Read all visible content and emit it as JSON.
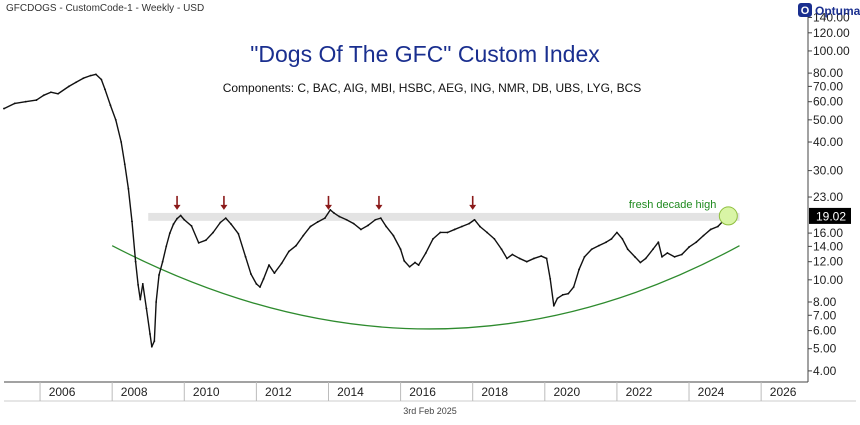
{
  "header": {
    "ticker_text": "GFCDOGS - CustomCode-1 - Weekly - USD"
  },
  "brand": {
    "name": "Optuma",
    "logo_letter": "O"
  },
  "footer": {
    "date_text": "3rd Feb 2025"
  },
  "colors": {
    "price_line": "#111111",
    "resistance_band": "#e3e3e3",
    "arrow": "#8b1a1a",
    "arc": "#2e8b2e",
    "highlight_fill": "#d9f5a6",
    "title": "#1a2f8f",
    "last_value_bg": "#000000"
  },
  "chart_data": {
    "type": "line",
    "title": "\"Dogs Of The GFC\" Custom Index",
    "subtitle": "Components: C, BAC, AIG, MBI, HSBC, AEG, ING, NMR, DB, UBS, LYG, BCS",
    "scale": "log",
    "grid": false,
    "xlabel": "",
    "ylabel": "",
    "xlim": [
      2005.0,
      2027.3
    ],
    "ylim": [
      3.8,
      145
    ],
    "x_ticks": [
      "2006",
      "2008",
      "2010",
      "2012",
      "2014",
      "2016",
      "2018",
      "2020",
      "2022",
      "2024",
      "2026"
    ],
    "y_ticks": [
      "4.00",
      "5.00",
      "6.00",
      "7.00",
      "8.00",
      "10.00",
      "12.00",
      "14.00",
      "16.00",
      "19.02",
      "23.00",
      "30.00",
      "40.00",
      "50.00",
      "60.00",
      "70.00",
      "80.00",
      "100.00",
      "120.00",
      "140.00"
    ],
    "last_value": "19.02",
    "series": [
      {
        "points": [
          [
            2005.0,
            56
          ],
          [
            2005.3,
            59
          ],
          [
            2005.6,
            60
          ],
          [
            2005.9,
            61
          ],
          [
            2006.1,
            64
          ],
          [
            2006.3,
            66
          ],
          [
            2006.5,
            65
          ],
          [
            2006.8,
            70
          ],
          [
            2007.0,
            73
          ],
          [
            2007.2,
            76
          ],
          [
            2007.4,
            78
          ],
          [
            2007.55,
            79
          ],
          [
            2007.7,
            75
          ],
          [
            2007.8,
            68
          ],
          [
            2007.95,
            58
          ],
          [
            2008.1,
            50
          ],
          [
            2008.25,
            40
          ],
          [
            2008.35,
            32
          ],
          [
            2008.45,
            25
          ],
          [
            2008.55,
            18
          ],
          [
            2008.65,
            12
          ],
          [
            2008.72,
            9.5
          ],
          [
            2008.78,
            8.2
          ],
          [
            2008.85,
            9.6
          ],
          [
            2008.95,
            7.5
          ],
          [
            2009.05,
            5.8
          ],
          [
            2009.1,
            5.1
          ],
          [
            2009.17,
            5.4
          ],
          [
            2009.22,
            8
          ],
          [
            2009.3,
            10.5
          ],
          [
            2009.4,
            12
          ],
          [
            2009.5,
            14
          ],
          [
            2009.6,
            16
          ],
          [
            2009.7,
            17.5
          ],
          [
            2009.8,
            18.5
          ],
          [
            2009.9,
            19.1
          ],
          [
            2010.0,
            18.3
          ],
          [
            2010.2,
            17.2
          ],
          [
            2010.4,
            14.5
          ],
          [
            2010.6,
            14.9
          ],
          [
            2010.8,
            16.1
          ],
          [
            2011.0,
            17.8
          ],
          [
            2011.15,
            18.6
          ],
          [
            2011.3,
            17.5
          ],
          [
            2011.5,
            15.9
          ],
          [
            2011.7,
            12.6
          ],
          [
            2011.85,
            10.6
          ],
          [
            2012.0,
            9.6
          ],
          [
            2012.1,
            9.3
          ],
          [
            2012.2,
            10.1
          ],
          [
            2012.35,
            11.6
          ],
          [
            2012.5,
            10.7
          ],
          [
            2012.7,
            11.8
          ],
          [
            2012.9,
            13.3
          ],
          [
            2013.1,
            14.1
          ],
          [
            2013.3,
            15.6
          ],
          [
            2013.5,
            17.1
          ],
          [
            2013.7,
            17.9
          ],
          [
            2013.9,
            18.6
          ],
          [
            2014.05,
            20.2
          ],
          [
            2014.15,
            19.6
          ],
          [
            2014.3,
            18.9
          ],
          [
            2014.5,
            18.3
          ],
          [
            2014.7,
            17.6
          ],
          [
            2014.9,
            16.6
          ],
          [
            2015.1,
            17.3
          ],
          [
            2015.3,
            18.3
          ],
          [
            2015.45,
            18.6
          ],
          [
            2015.6,
            17.1
          ],
          [
            2015.8,
            15.6
          ],
          [
            2016.0,
            13.6
          ],
          [
            2016.1,
            12.1
          ],
          [
            2016.25,
            11.4
          ],
          [
            2016.4,
            11.9
          ],
          [
            2016.5,
            11.6
          ],
          [
            2016.7,
            13.1
          ],
          [
            2016.9,
            15.1
          ],
          [
            2017.1,
            16.1
          ],
          [
            2017.3,
            16.1
          ],
          [
            2017.5,
            16.6
          ],
          [
            2017.7,
            17.1
          ],
          [
            2017.9,
            17.6
          ],
          [
            2018.05,
            18.3
          ],
          [
            2018.2,
            17.1
          ],
          [
            2018.4,
            16.1
          ],
          [
            2018.6,
            15.1
          ],
          [
            2018.8,
            13.6
          ],
          [
            2018.95,
            12.4
          ],
          [
            2019.1,
            12.9
          ],
          [
            2019.3,
            12.4
          ],
          [
            2019.5,
            12.0
          ],
          [
            2019.7,
            12.4
          ],
          [
            2019.9,
            12.7
          ],
          [
            2020.05,
            12.4
          ],
          [
            2020.15,
            10.1
          ],
          [
            2020.25,
            7.7
          ],
          [
            2020.35,
            8.3
          ],
          [
            2020.5,
            8.6
          ],
          [
            2020.65,
            8.7
          ],
          [
            2020.8,
            9.3
          ],
          [
            2020.95,
            11.1
          ],
          [
            2021.1,
            12.6
          ],
          [
            2021.3,
            13.6
          ],
          [
            2021.5,
            14.1
          ],
          [
            2021.7,
            14.6
          ],
          [
            2021.85,
            15.1
          ],
          [
            2022.0,
            16.1
          ],
          [
            2022.15,
            15.1
          ],
          [
            2022.3,
            13.6
          ],
          [
            2022.5,
            12.6
          ],
          [
            2022.65,
            11.9
          ],
          [
            2022.8,
            12.4
          ],
          [
            2023.0,
            13.6
          ],
          [
            2023.15,
            14.6
          ],
          [
            2023.25,
            12.6
          ],
          [
            2023.4,
            13.1
          ],
          [
            2023.6,
            12.6
          ],
          [
            2023.8,
            12.9
          ],
          [
            2024.0,
            13.9
          ],
          [
            2024.2,
            14.6
          ],
          [
            2024.4,
            15.6
          ],
          [
            2024.6,
            16.6
          ],
          [
            2024.8,
            17.1
          ],
          [
            2024.95,
            18.1
          ],
          [
            2025.09,
            19.02
          ]
        ]
      }
    ],
    "resistance_band": {
      "low": 18.1,
      "high": 19.6,
      "x_from": 2009.0,
      "x_to": 2025.4
    },
    "highlighted_peaks_x": [
      2009.8,
      2011.1,
      2014.0,
      2015.4,
      2018.0
    ],
    "arc": {
      "x_from": 2008.0,
      "x_to": 2025.4,
      "y_left": 14.1,
      "y_bottom": 6.1,
      "bottom_x": 2016.8,
      "y_right": 14.1
    },
    "annotation": {
      "text": "fresh decade high",
      "x": 2025.09,
      "y": 19.02
    }
  }
}
